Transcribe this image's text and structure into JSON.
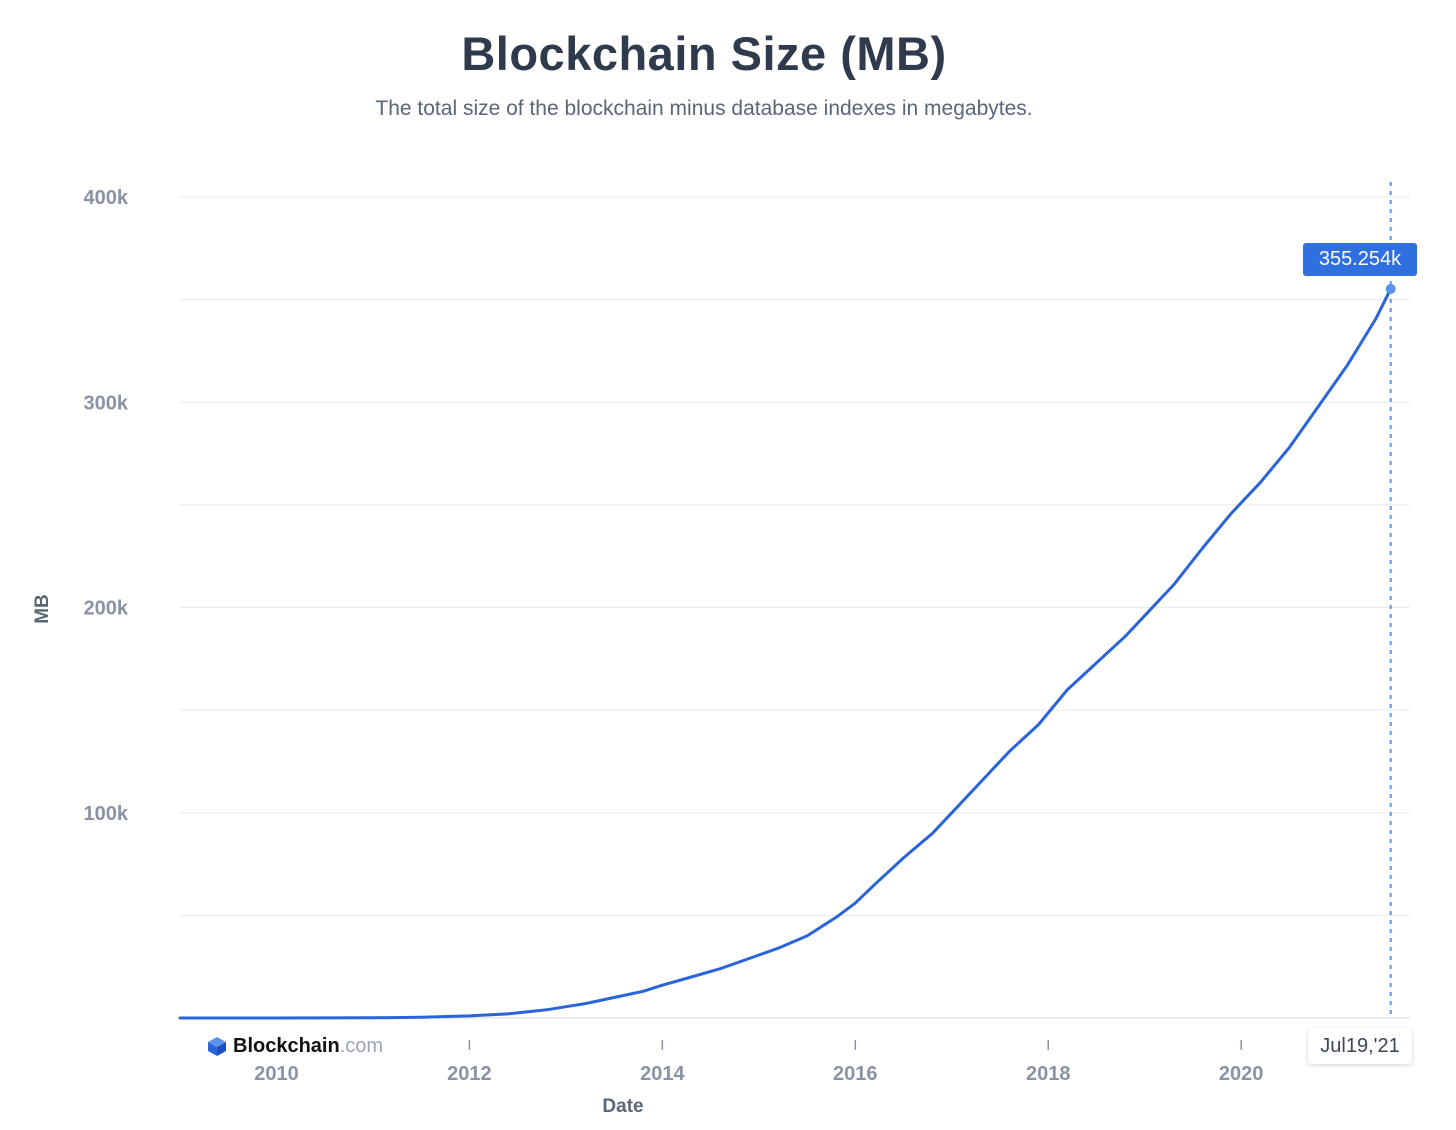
{
  "chart_data": {
    "type": "line",
    "title": "Blockchain Size (MB)",
    "subtitle": "The total size of the blockchain minus database indexes in megabytes.",
    "xlabel": "Date",
    "ylabel": "MB",
    "xlim": [
      2009.0,
      2021.75
    ],
    "ylim": [
      0,
      400000
    ],
    "y_ticks": [
      100000,
      200000,
      300000,
      400000
    ],
    "y_tick_labels": [
      "100k",
      "200k",
      "300k",
      "400k"
    ],
    "y_gridlines": [
      0,
      50000,
      100000,
      150000,
      200000,
      250000,
      300000,
      350000,
      400000
    ],
    "x_ticks": [
      2010,
      2012,
      2014,
      2016,
      2018,
      2020
    ],
    "x_tick_labels": [
      "2010",
      "2012",
      "2014",
      "2016",
      "2018",
      "2020"
    ],
    "series": [
      {
        "name": "Blockchain Size",
        "color": "#2a64d8",
        "x": [
          2009.0,
          2010.0,
          2011.0,
          2011.5,
          2012.0,
          2012.4,
          2012.8,
          2013.0,
          2013.2,
          2013.5,
          2013.8,
          2014.0,
          2014.3,
          2014.6,
          2014.9,
          2015.2,
          2015.5,
          2015.8,
          2016.0,
          2016.2,
          2016.5,
          2016.8,
          2017.0,
          2017.3,
          2017.6,
          2017.9,
          2018.2,
          2018.5,
          2018.8,
          2019.0,
          2019.3,
          2019.6,
          2019.9,
          2020.2,
          2020.5,
          2020.8,
          2021.1,
          2021.4,
          2021.55
        ],
        "values": [
          0,
          0,
          100,
          400,
          1000,
          2000,
          4000,
          5500,
          7000,
          10000,
          13000,
          16000,
          20000,
          24000,
          29000,
          34000,
          40000,
          49000,
          56000,
          65000,
          78000,
          90000,
          100000,
          115000,
          130000,
          143000,
          160000,
          173000,
          186000,
          196000,
          211000,
          229000,
          246000,
          261000,
          278000,
          298000,
          318000,
          341000,
          355254
        ]
      }
    ],
    "highlight": {
      "value_label": "355.254k",
      "date_label": "Jul19,'21",
      "x": 2021.55,
      "y": 355254
    }
  },
  "brand": {
    "name": "Blockchain",
    "suffix": ".com"
  },
  "colors": {
    "line": "#2a64d8",
    "marker": "#5b93ea",
    "grid": "#e8eaee",
    "tooltip": "#2f6fe0"
  }
}
